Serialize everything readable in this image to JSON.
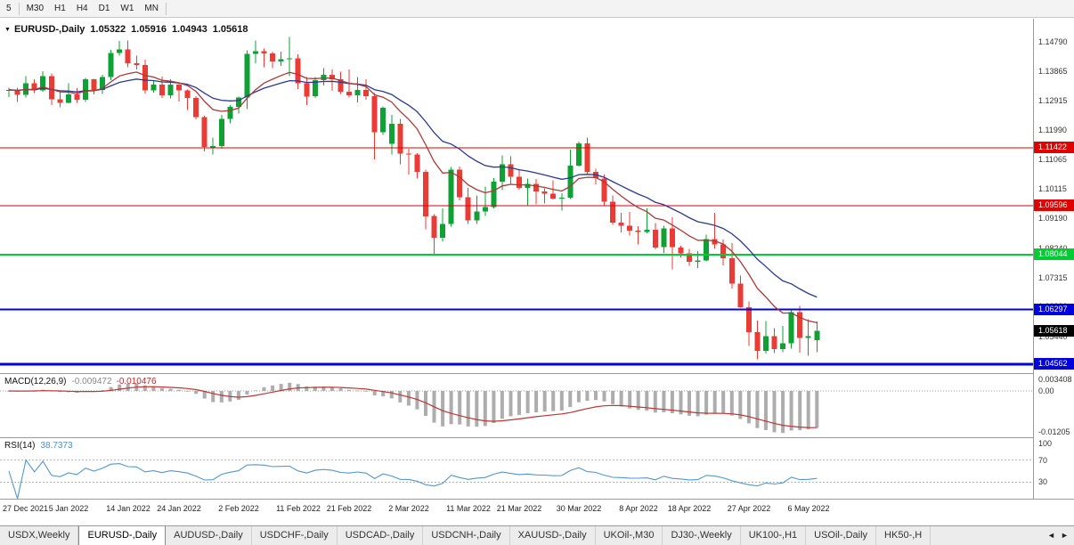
{
  "toolbar": {
    "timeframes": [
      "5",
      "M30",
      "H1",
      "H4",
      "D1",
      "W1",
      "MN"
    ]
  },
  "chart": {
    "title": {
      "symbol": "EURUSD-,Daily",
      "open": "1.05322",
      "high": "1.05916",
      "low": "1.04943",
      "close": "1.05618"
    },
    "price_axis_labels": [
      "1.14790",
      "1.13865",
      "1.12915",
      "1.11990",
      "1.11065",
      "1.10115",
      "1.09190",
      "1.08240",
      "1.07315",
      "1.06390",
      "1.05440",
      "1.04515"
    ],
    "levels": [
      {
        "price": 1.11422,
        "label": "1.11422",
        "color": "#e10000",
        "width": 1
      },
      {
        "price": 1.09596,
        "label": "1.09596",
        "color": "#e10000",
        "width": 1
      },
      {
        "price": 1.08044,
        "label": "1.08044",
        "color": "#00cc33",
        "width": 2
      },
      {
        "price": 1.06297,
        "label": "1.06297",
        "color": "#0000dc",
        "width": 2
      },
      {
        "price": 1.04562,
        "label": "1.04562",
        "color": "#0000dc",
        "width": 3
      }
    ],
    "current_price": {
      "price": 1.05618,
      "label": "1.05618",
      "color": "#000000"
    },
    "colors": {
      "up": "#0fa134",
      "down": "#ea3b34",
      "ma_fast": "#a93a38",
      "ma_slow": "#2b3990"
    }
  },
  "chart_data": {
    "type": "candlestick",
    "symbol": "EURUSD",
    "timeframe": "Daily",
    "x_labels": [
      {
        "text": "27 Dec 2021",
        "index": 0
      },
      {
        "text": "5 Jan 2022",
        "index": 7
      },
      {
        "text": "14 Jan 2022",
        "index": 14
      },
      {
        "text": "24 Jan 2022",
        "index": 20
      },
      {
        "text": "2 Feb 2022",
        "index": 27
      },
      {
        "text": "11 Feb 2022",
        "index": 34
      },
      {
        "text": "21 Feb 2022",
        "index": 40
      },
      {
        "text": "2 Mar 2022",
        "index": 47
      },
      {
        "text": "11 Mar 2022",
        "index": 54
      },
      {
        "text": "21 Mar 2022",
        "index": 60
      },
      {
        "text": "30 Mar 2022",
        "index": 67
      },
      {
        "text": "8 Apr 2022",
        "index": 74
      },
      {
        "text": "18 Apr 2022",
        "index": 80
      },
      {
        "text": "27 Apr 2022",
        "index": 87
      },
      {
        "text": "6 May 2022",
        "index": 94
      }
    ],
    "ohlc": [
      [
        1.1325,
        1.1333,
        1.1304,
        1.1327
      ],
      [
        1.1327,
        1.1334,
        1.1289,
        1.1311
      ],
      [
        1.1311,
        1.137,
        1.1303,
        1.1348
      ],
      [
        1.1348,
        1.136,
        1.1316,
        1.1325
      ],
      [
        1.1325,
        1.1386,
        1.1321,
        1.137
      ],
      [
        1.137,
        1.1379,
        1.1279,
        1.1297
      ],
      [
        1.1297,
        1.1323,
        1.1272,
        1.1285
      ],
      [
        1.1285,
        1.1347,
        1.1284,
        1.1312
      ],
      [
        1.1312,
        1.1332,
        1.1285,
        1.1296
      ],
      [
        1.1296,
        1.1365,
        1.1288,
        1.136
      ],
      [
        1.136,
        1.1362,
        1.1313,
        1.1327
      ],
      [
        1.1327,
        1.1374,
        1.1314,
        1.1367
      ],
      [
        1.1367,
        1.1453,
        1.1358,
        1.1444
      ],
      [
        1.1444,
        1.1482,
        1.1435,
        1.1455
      ],
      [
        1.1455,
        1.1483,
        1.1398,
        1.1411
      ],
      [
        1.1411,
        1.1435,
        1.1392,
        1.1406
      ],
      [
        1.1406,
        1.1422,
        1.1315,
        1.1325
      ],
      [
        1.1325,
        1.1358,
        1.1318,
        1.1344
      ],
      [
        1.1344,
        1.1369,
        1.1301,
        1.131
      ],
      [
        1.131,
        1.136,
        1.13,
        1.1343
      ],
      [
        1.1343,
        1.1349,
        1.129,
        1.1325
      ],
      [
        1.1325,
        1.1328,
        1.1263,
        1.1301
      ],
      [
        1.1301,
        1.1307,
        1.1233,
        1.124
      ],
      [
        1.124,
        1.1244,
        1.1131,
        1.1145
      ],
      [
        1.1145,
        1.1175,
        1.1121,
        1.1148
      ],
      [
        1.1148,
        1.1248,
        1.114,
        1.1234
      ],
      [
        1.1234,
        1.1279,
        1.1221,
        1.1273
      ],
      [
        1.1273,
        1.1305,
        1.1252,
        1.1303
      ],
      [
        1.1303,
        1.1452,
        1.1266,
        1.1441
      ],
      [
        1.1441,
        1.1483,
        1.1411,
        1.145
      ],
      [
        1.145,
        1.1458,
        1.1398,
        1.1442
      ],
      [
        1.1442,
        1.1448,
        1.1396,
        1.1417
      ],
      [
        1.1417,
        1.1448,
        1.1403,
        1.1424
      ],
      [
        1.1424,
        1.1495,
        1.137,
        1.1427
      ],
      [
        1.1427,
        1.144,
        1.133,
        1.1348
      ],
      [
        1.1348,
        1.1368,
        1.1278,
        1.1306
      ],
      [
        1.1306,
        1.1368,
        1.1301,
        1.1358
      ],
      [
        1.1358,
        1.1395,
        1.134,
        1.1374
      ],
      [
        1.1374,
        1.1392,
        1.1324,
        1.1361
      ],
      [
        1.1361,
        1.1384,
        1.1314,
        1.1321
      ],
      [
        1.1321,
        1.1391,
        1.1303,
        1.131
      ],
      [
        1.131,
        1.1368,
        1.1287,
        1.1327
      ],
      [
        1.1327,
        1.136,
        1.1295,
        1.1307
      ],
      [
        1.1307,
        1.1317,
        1.1106,
        1.1192
      ],
      [
        1.1192,
        1.1274,
        1.1184,
        1.127
      ],
      [
        1.1155,
        1.1247,
        1.1122,
        1.1219
      ],
      [
        1.1219,
        1.1234,
        1.109,
        1.1125
      ],
      [
        1.1125,
        1.114,
        1.1058,
        1.1122
      ],
      [
        1.1122,
        1.1126,
        1.1045,
        1.1066
      ],
      [
        1.1066,
        1.1074,
        1.0885,
        1.0926
      ],
      [
        1.0926,
        1.0932,
        1.0806,
        1.0857
      ],
      [
        1.0857,
        1.095,
        1.0846,
        1.0901
      ],
      [
        1.0901,
        1.1082,
        1.0893,
        1.1074
      ],
      [
        1.1074,
        1.1084,
        1.0976,
        1.0986
      ],
      [
        1.0986,
        1.1015,
        1.0901,
        1.0912
      ],
      [
        1.0912,
        1.0991,
        1.0901,
        1.0941
      ],
      [
        1.0941,
        1.102,
        1.0926,
        1.0955
      ],
      [
        1.0955,
        1.1047,
        1.0951,
        1.1035
      ],
      [
        1.1035,
        1.1119,
        1.1009,
        1.1091
      ],
      [
        1.1091,
        1.1116,
        1.1028,
        1.1051
      ],
      [
        1.1051,
        1.1072,
        1.101,
        1.1015
      ],
      [
        1.1015,
        1.1046,
        1.0961,
        1.1028
      ],
      [
        1.1028,
        1.1044,
        1.0963,
        1.1004
      ],
      [
        1.1004,
        1.1014,
        1.0966,
        1.0997
      ],
      [
        1.0997,
        1.1039,
        1.0979,
        1.0982
      ],
      [
        1.0982,
        1.0999,
        1.0944,
        1.0984
      ],
      [
        1.0984,
        1.1137,
        1.098,
        1.1086
      ],
      [
        1.1086,
        1.1162,
        1.1084,
        1.1157
      ],
      [
        1.1157,
        1.1176,
        1.1061,
        1.1067
      ],
      [
        1.1067,
        1.1077,
        1.1027,
        1.1046
      ],
      [
        1.1046,
        1.1058,
        1.096,
        1.0972
      ],
      [
        1.0972,
        1.0991,
        1.0898,
        1.0905
      ],
      [
        1.0905,
        1.0937,
        1.0874,
        1.0895
      ],
      [
        1.0895,
        1.0939,
        1.0864,
        1.088
      ],
      [
        1.088,
        1.0894,
        1.0836,
        1.0876
      ],
      [
        1.0876,
        1.095,
        1.0872,
        1.0883
      ],
      [
        1.0883,
        1.0904,
        1.0821,
        1.0827
      ],
      [
        1.0827,
        1.0896,
        1.0809,
        1.0887
      ],
      [
        1.0887,
        1.0923,
        1.0757,
        1.0827
      ],
      [
        1.0827,
        1.0832,
        1.0796,
        1.0808
      ],
      [
        1.0808,
        1.0822,
        1.0769,
        1.0781
      ],
      [
        1.0781,
        1.0815,
        1.0761,
        1.0786
      ],
      [
        1.0786,
        1.0867,
        1.0783,
        1.0853
      ],
      [
        1.0853,
        1.0937,
        1.0824,
        1.0836
      ],
      [
        1.0836,
        1.0852,
        1.077,
        1.0793
      ],
      [
        1.0793,
        1.084,
        1.0697,
        1.0712
      ],
      [
        1.0712,
        1.0738,
        1.0635,
        1.0637
      ],
      [
        1.0637,
        1.0655,
        1.0514,
        1.0558
      ],
      [
        1.0558,
        1.0594,
        1.0472,
        1.0498
      ],
      [
        1.0498,
        1.0593,
        1.049,
        1.0545
      ],
      [
        1.0545,
        1.0571,
        1.0491,
        1.0505
      ],
      [
        1.0505,
        1.0578,
        1.0495,
        1.0523
      ],
      [
        1.0523,
        1.0631,
        1.0506,
        1.0622
      ],
      [
        1.0622,
        1.0642,
        1.0493,
        1.054
      ],
      [
        1.054,
        1.0599,
        1.0483,
        1.0545
      ],
      [
        1.05322,
        1.05916,
        1.04943,
        1.05618
      ]
    ]
  },
  "macd": {
    "name": "MACD(12,26,9)",
    "value_main": "-0.009472",
    "value_signal": "-0.010476",
    "axis_labels": [
      {
        "text": "0.003408",
        "value": 0.003408
      },
      {
        "text": "0.00",
        "value": 0
      },
      {
        "text": "-0.01205",
        "value": -0.01205
      }
    ],
    "histogram_color": "#adadad",
    "signal_color": "#bf3535"
  },
  "rsi": {
    "name": "RSI(14)",
    "value": "38.7373",
    "axis_labels": [
      {
        "text": "100",
        "value": 100
      },
      {
        "text": "70",
        "value": 70
      },
      {
        "text": "30",
        "value": 30
      }
    ],
    "levels": [
      70,
      30
    ],
    "line_color": "#5596cf"
  },
  "tabbar": {
    "tabs": [
      {
        "label": "USDX,Weekly",
        "active": false
      },
      {
        "label": "EURUSD-,Daily",
        "active": true
      },
      {
        "label": "AUDUSD-,Daily",
        "active": false
      },
      {
        "label": "USDCHF-,Daily",
        "active": false
      },
      {
        "label": "USDCAD-,Daily",
        "active": false
      },
      {
        "label": "USDCNH-,Daily",
        "active": false
      },
      {
        "label": "XAUUSD-,Daily",
        "active": false
      },
      {
        "label": "UKOil-,M30",
        "active": false
      },
      {
        "label": "DJ30-,Weekly",
        "active": false
      },
      {
        "label": "UK100-,H1",
        "active": false
      },
      {
        "label": "USOil-,Daily",
        "active": false
      },
      {
        "label": "HK50-,H",
        "active": false
      }
    ],
    "left_arrow": "◄",
    "right_arrow": "►"
  }
}
